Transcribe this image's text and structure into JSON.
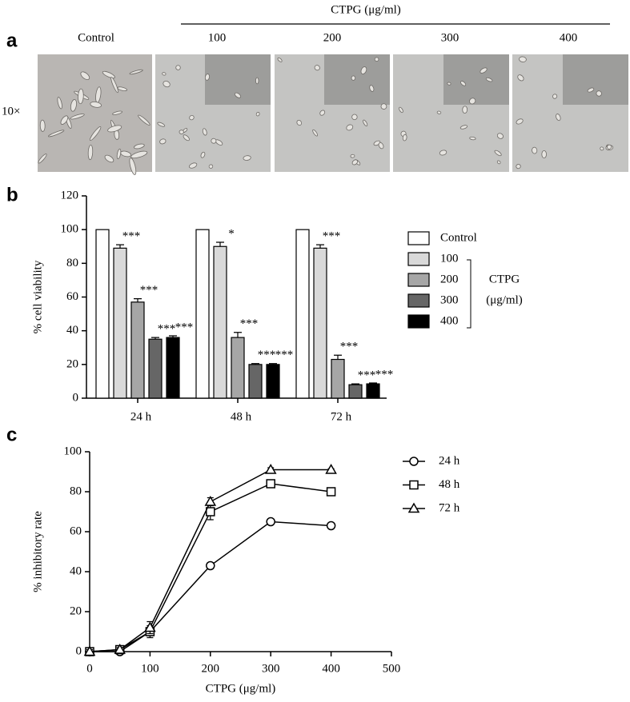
{
  "figure_a": {
    "panel_label": "a",
    "group_label": "CTPG (μg/ml)",
    "columns": [
      "Control",
      "100",
      "200",
      "300",
      "400"
    ],
    "row_label": "10×"
  },
  "chart_data": [
    {
      "type": "bar",
      "panel_label": "b",
      "ylabel": "% cell viability",
      "categories": [
        "24 h",
        "48 h",
        "72 h"
      ],
      "series": [
        {
          "name": "Control",
          "color": "#ffffff",
          "values": [
            100,
            100,
            100
          ]
        },
        {
          "name": "100",
          "color": "#d9d9d9",
          "values": [
            89,
            90,
            89
          ],
          "errors": [
            2,
            2.5,
            2
          ],
          "significance": [
            "***",
            "*",
            "***"
          ]
        },
        {
          "name": "200",
          "color": "#a6a6a6",
          "values": [
            57,
            36,
            23
          ],
          "errors": [
            2,
            3,
            2.5
          ],
          "significance": [
            "***",
            "***",
            "***"
          ]
        },
        {
          "name": "300",
          "color": "#666666",
          "values": [
            35,
            20,
            8
          ],
          "errors": [
            1,
            0.5,
            0.5
          ],
          "significance": [
            "***",
            "***",
            "***"
          ]
        },
        {
          "name": "400",
          "color": "#000000",
          "values": [
            36,
            20,
            8.5
          ],
          "errors": [
            1,
            0.5,
            0.5
          ],
          "significance": [
            "***",
            "***",
            "***"
          ]
        }
      ],
      "legend_group_label": [
        "CTPG",
        "(μg/ml)"
      ],
      "ylim": [
        0,
        120
      ],
      "yticks": [
        0,
        20,
        40,
        60,
        80,
        100,
        120
      ]
    },
    {
      "type": "line",
      "panel_label": "c",
      "xlabel": "CTPG (μg/ml)",
      "ylabel": "% inhibitory rate",
      "x": [
        0,
        50,
        100,
        200,
        300,
        400
      ],
      "series": [
        {
          "name": "24 h",
          "color": "#000000",
          "marker": "circle",
          "values": [
            0,
            0,
            10,
            43,
            65,
            63
          ],
          "errors": [
            1,
            1,
            3,
            1.5,
            0.5,
            0.5
          ]
        },
        {
          "name": "48 h",
          "color": "#000000",
          "marker": "square",
          "values": [
            0,
            1,
            10,
            70,
            84,
            80
          ],
          "errors": [
            1,
            1,
            2,
            4,
            1.5,
            1
          ]
        },
        {
          "name": "72 h",
          "color": "#000000",
          "marker": "triangle",
          "values": [
            0,
            1,
            12,
            75,
            91,
            91
          ],
          "errors": [
            1,
            1,
            3,
            2,
            1,
            0.5
          ]
        }
      ],
      "xlim": [
        0,
        500
      ],
      "xticks": [
        0,
        100,
        200,
        300,
        400,
        500
      ],
      "ylim": [
        0,
        100
      ],
      "yticks": [
        0,
        20,
        40,
        60,
        80,
        100
      ]
    }
  ]
}
